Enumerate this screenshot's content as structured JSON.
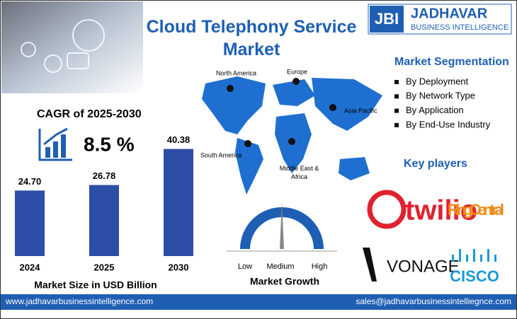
{
  "header": {
    "title": "Cloud Telephony Service Market",
    "logo": {
      "mark": "JBI",
      "name": "JADHAVAR",
      "tagline": "BUSINESS INTELLIGENCE"
    }
  },
  "cagr": {
    "label": "CAGR of 2025-2030",
    "value": "8.5 %"
  },
  "chart_data": {
    "type": "bar",
    "categories": [
      "2024",
      "2025",
      "2030"
    ],
    "values": [
      24.7,
      26.78,
      40.38
    ],
    "value_labels": [
      "24.70",
      "26.78",
      "40.38"
    ],
    "color": "#2d4ea6",
    "x_label": "Market Size in USD Billion"
  },
  "map": {
    "regions": [
      "North America",
      "Europe",
      "Asia Pacific",
      "South America",
      "Middle East & Africa"
    ]
  },
  "gauge": {
    "title": "Market Growth",
    "labels": [
      "Low",
      "Medium",
      "High"
    ]
  },
  "segmentation": {
    "title": "Market Segmentation",
    "items": [
      "By Deployment",
      "By Network Type",
      "By Application",
      "By End-Use Industry"
    ]
  },
  "key_players": {
    "title": "Key players",
    "logos": [
      "twilio",
      "RingCentral",
      "VONAGE",
      "CISCO"
    ]
  },
  "footer": {
    "website": "www.jadhavarbusinessintelligence.com",
    "email": "sales@jadhavarbusinessintelliegnce.com"
  }
}
